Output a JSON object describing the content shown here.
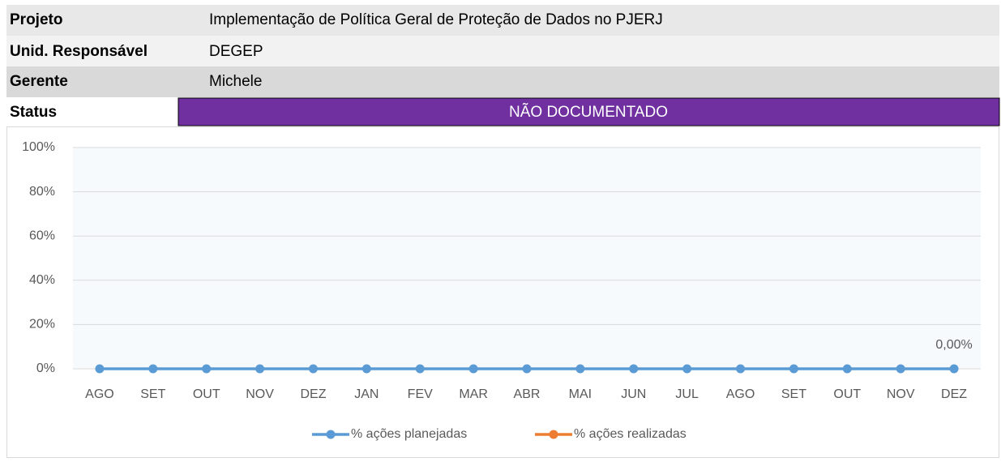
{
  "header": {
    "rows": [
      {
        "label": "Projeto",
        "value": "Implementação de Política Geral de Proteção de Dados no PJERJ"
      },
      {
        "label": "Unid. Responsável",
        "value": "DEGEP"
      },
      {
        "label": "Gerente",
        "value": "Michele"
      },
      {
        "label": "Status",
        "value": "NÃO DOCUMENTADO"
      }
    ]
  },
  "chart_data": {
    "type": "line",
    "categories": [
      "AGO",
      "SET",
      "OUT",
      "NOV",
      "DEZ",
      "JAN",
      "FEV",
      "MAR",
      "ABR",
      "MAI",
      "JUN",
      "JUL",
      "AGO",
      "SET",
      "OUT",
      "NOV",
      "DEZ"
    ],
    "series": [
      {
        "name": "% ações planejadas",
        "color": "#5b9bd5",
        "values": [
          0,
          0,
          0,
          0,
          0,
          0,
          0,
          0,
          0,
          0,
          0,
          0,
          0,
          0,
          0,
          0,
          0
        ],
        "value_labels": [
          null,
          null,
          null,
          null,
          null,
          null,
          null,
          null,
          null,
          null,
          null,
          null,
          null,
          null,
          null,
          null,
          "0,00%"
        ]
      },
      {
        "name": "% ações realizadas",
        "color": "#ed7d31",
        "values": [
          null,
          null,
          null,
          null,
          null,
          null,
          null,
          null,
          null,
          null,
          null,
          null,
          null,
          null,
          null,
          null,
          null
        ]
      }
    ],
    "ylim": [
      0,
      100
    ],
    "yticks": [
      {
        "value": 0,
        "label": "0%"
      },
      {
        "value": 20,
        "label": "20%"
      },
      {
        "value": 40,
        "label": "40%"
      },
      {
        "value": 60,
        "label": "60%"
      },
      {
        "value": 80,
        "label": "80%"
      },
      {
        "value": 100,
        "label": "100%"
      }
    ],
    "grid": true,
    "legend": "bottom"
  }
}
